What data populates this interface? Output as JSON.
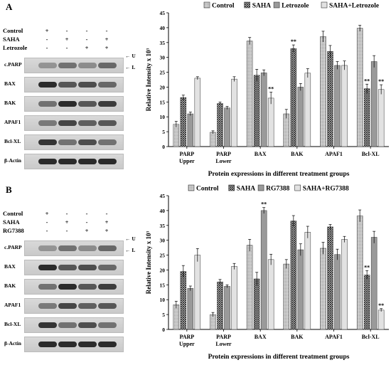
{
  "panels": [
    {
      "letter": "A",
      "treatments": [
        {
          "label": "Control",
          "signs": [
            "+",
            "-",
            "-",
            "-"
          ]
        },
        {
          "label": "SAHA",
          "signs": [
            "-",
            "+",
            "-",
            "+"
          ]
        },
        {
          "label": "Letrozole",
          "signs": [
            "-",
            "-",
            "+",
            "+"
          ]
        }
      ],
      "blot_rows": [
        "c.PARP",
        "BAX",
        "BAK",
        "APAF1",
        "Bcl-XL",
        "β-Actin"
      ],
      "upper_mark": "U",
      "lower_mark": "L"
    },
    {
      "letter": "B",
      "treatments": [
        {
          "label": "Control",
          "signs": [
            "+",
            "-",
            "-",
            "-"
          ]
        },
        {
          "label": "SAHA",
          "signs": [
            "-",
            "+",
            "-",
            "+"
          ]
        },
        {
          "label": "RG7388",
          "signs": [
            "-",
            "-",
            "+",
            "+"
          ]
        }
      ],
      "blot_rows": [
        "c.PARP",
        "BAX",
        "BAK",
        "APAF1",
        "Bcl-XL",
        "β-Actin"
      ],
      "upper_mark": "U",
      "lower_mark": "L"
    }
  ],
  "colors": {
    "series": [
      "#c8c8c8",
      "#2a2a2a",
      "#9a9a9a",
      "#e2e2e2"
    ]
  },
  "chart_data": [
    {
      "type": "bar",
      "xlabel": "Protein expressions in different treatment groups",
      "ylabel": "Relative Intensity x 10³",
      "ylim": [
        0,
        45
      ],
      "yticks": [
        0,
        5,
        10,
        15,
        20,
        25,
        30,
        35,
        40,
        45
      ],
      "categories": [
        [
          "PARP",
          "Upper"
        ],
        [
          "PARP",
          "Lower"
        ],
        [
          "BAX"
        ],
        [
          "BAK"
        ],
        [
          "APAF1"
        ],
        [
          "Bcl-XL"
        ]
      ],
      "legend_position": "top",
      "series": [
        {
          "name": "Control",
          "values": [
            7.5,
            4.8,
            35.5,
            11.0,
            37.0,
            39.8
          ],
          "errors": [
            1.0,
            0.5,
            1.2,
            1.5,
            1.8,
            1.0
          ]
        },
        {
          "name": "SAHA",
          "values": [
            16.5,
            14.5,
            24.0,
            33.0,
            32.0,
            19.5
          ],
          "errors": [
            0.8,
            0.5,
            2.0,
            1.2,
            2.0,
            1.5
          ]
        },
        {
          "name": "Letrozole",
          "values": [
            11.0,
            13.0,
            24.8,
            20.0,
            27.3,
            28.6
          ],
          "errors": [
            0.6,
            0.5,
            1.0,
            1.2,
            1.3,
            2.0
          ]
        },
        {
          "name": "SAHA+Letrozole",
          "values": [
            23.0,
            22.7,
            16.3,
            24.7,
            27.3,
            19.2
          ],
          "errors": [
            0.5,
            0.8,
            2.0,
            1.5,
            1.5,
            1.6
          ]
        }
      ],
      "annotations": [
        {
          "series": 1,
          "category": 3,
          "text": "**"
        },
        {
          "series": 3,
          "category": 2,
          "text": "**"
        },
        {
          "series": 1,
          "category": 5,
          "text": "**"
        },
        {
          "series": 3,
          "category": 5,
          "text": "**"
        }
      ]
    },
    {
      "type": "bar",
      "xlabel": "Protein expressions in different treatment groups",
      "ylabel": "Relative Intensity x 10³",
      "ylim": [
        0,
        45
      ],
      "yticks": [
        0,
        5,
        10,
        15,
        20,
        25,
        30,
        35,
        40,
        45
      ],
      "categories": [
        [
          "PARP",
          "Upper"
        ],
        [
          "PARP",
          "Lower"
        ],
        [
          "BAX"
        ],
        [
          "BAK"
        ],
        [
          "APAF1"
        ],
        [
          "Bcl-XL"
        ]
      ],
      "legend_position": "top",
      "series": [
        {
          "name": "Control",
          "values": [
            8.3,
            5.0,
            28.3,
            22.0,
            27.3,
            38.2
          ],
          "errors": [
            1.2,
            0.7,
            2.0,
            1.5,
            2.0,
            2.0
          ]
        },
        {
          "name": "SAHA",
          "values": [
            19.5,
            16.0,
            17.0,
            36.5,
            34.5,
            18.3
          ],
          "errors": [
            2.0,
            0.8,
            2.2,
            1.8,
            0.8,
            1.5
          ]
        },
        {
          "name": "RG7388",
          "values": [
            13.8,
            14.5,
            40.0,
            26.8,
            25.2,
            31.0
          ],
          "errors": [
            0.8,
            0.5,
            1.0,
            2.0,
            1.8,
            2.0
          ]
        },
        {
          "name": "SAHA+RG7388",
          "values": [
            25.0,
            21.2,
            23.5,
            32.7,
            30.3,
            6.5
          ],
          "errors": [
            2.2,
            1.0,
            1.8,
            2.0,
            1.0,
            0.5
          ]
        }
      ],
      "annotations": [
        {
          "series": 2,
          "category": 2,
          "text": "**"
        },
        {
          "series": 1,
          "category": 5,
          "text": "**"
        },
        {
          "series": 3,
          "category": 5,
          "text": "**"
        }
      ]
    }
  ]
}
